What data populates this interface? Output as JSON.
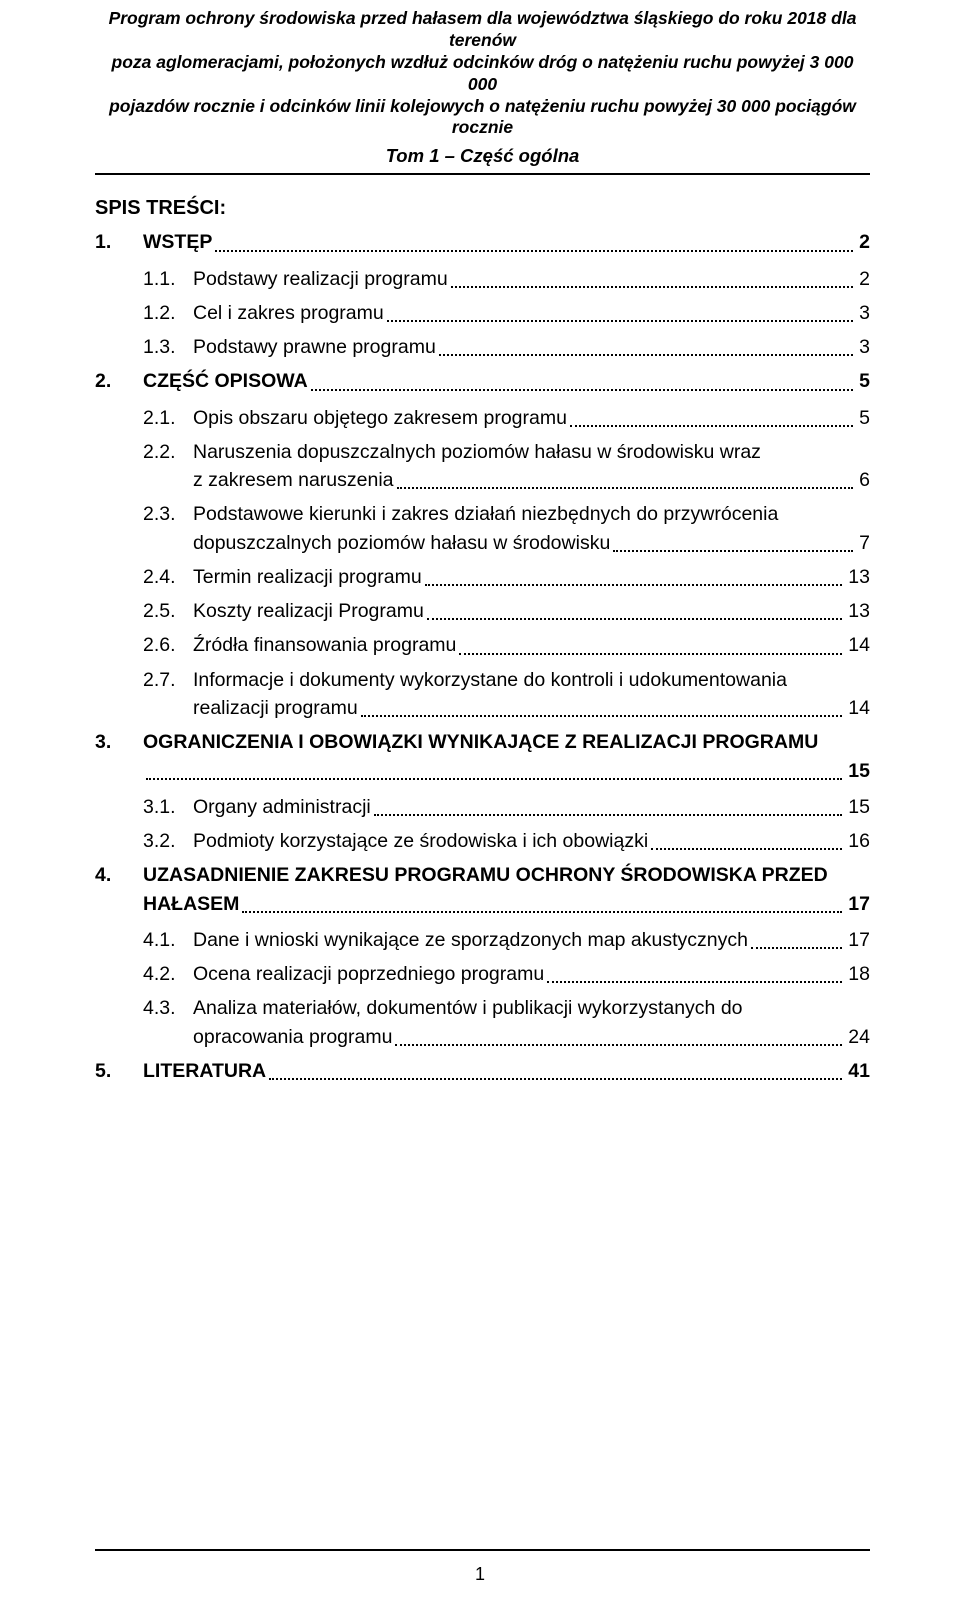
{
  "header": {
    "lines": [
      "Program ochrony środowiska przed hałasem dla województwa śląskiego do roku 2018 dla terenów",
      "poza aglomeracjami, położonych wzdłuż odcinków dróg o natężeniu ruchu powyżej 3 000 000",
      "pojazdów rocznie i odcinków linii kolejowych o natężeniu ruchu powyżej 30 000 pociągów rocznie"
    ],
    "subtitle": "Tom 1 – Część ogólna"
  },
  "toc": {
    "title": "SPIS TREŚCI:",
    "entries": [
      {
        "level": 1,
        "num": "1.",
        "label": "WSTĘP",
        "page": "2"
      },
      {
        "level": 2,
        "num": "1.1.",
        "label": "Podstawy realizacji programu",
        "page": "2"
      },
      {
        "level": 2,
        "num": "1.2.",
        "label": "Cel i zakres programu",
        "page": "3"
      },
      {
        "level": 2,
        "num": "1.3.",
        "label": "Podstawy prawne programu",
        "page": "3"
      },
      {
        "level": 1,
        "num": "2.",
        "label": "CZĘŚĆ OPISOWA",
        "page": "5"
      },
      {
        "level": 2,
        "num": "2.1.",
        "label": "Opis obszaru objętego zakresem programu",
        "page": "5"
      },
      {
        "level": 2,
        "num": "2.2.",
        "label_lines": [
          "Naruszenia dopuszczalnych poziomów hałasu w środowisku wraz",
          "z zakresem naruszenia"
        ],
        "page": "6"
      },
      {
        "level": 2,
        "num": "2.3.",
        "label_lines": [
          "Podstawowe kierunki i zakres działań niezbędnych do przywrócenia",
          "dopuszczalnych poziomów hałasu w środowisku"
        ],
        "page": "7"
      },
      {
        "level": 2,
        "num": "2.4.",
        "label": "Termin realizacji programu",
        "page": "13"
      },
      {
        "level": 2,
        "num": "2.5.",
        "label": "Koszty realizacji Programu",
        "page": "13"
      },
      {
        "level": 2,
        "num": "2.6.",
        "label": "Źródła finansowania programu",
        "page": "14"
      },
      {
        "level": 2,
        "num": "2.7.",
        "label_lines": [
          "Informacje i dokumenty wykorzystane do kontroli i udokumentowania",
          "realizacji programu"
        ],
        "page": "14"
      },
      {
        "level": 1,
        "num": "3.",
        "label_lines": [
          "OGRANICZENIA I OBOWIĄZKI WYNIKAJĄCE Z REALIZACJI PROGRAMU",
          ""
        ],
        "page": "15"
      },
      {
        "level": 2,
        "num": "3.1.",
        "label": "Organy administracji",
        "page": "15"
      },
      {
        "level": 2,
        "num": "3.2.",
        "label": "Podmioty korzystające ze środowiska i ich obowiązki",
        "page": "16"
      },
      {
        "level": 1,
        "num": "4.",
        "label_lines": [
          "UZASADNIENIE ZAKRESU PROGRAMU OCHRONY ŚRODOWISKA PRZED",
          "HAŁASEM"
        ],
        "page": "17"
      },
      {
        "level": 2,
        "num": "4.1.",
        "label": "Dane i wnioski wynikające ze sporządzonych map akustycznych",
        "page": "17"
      },
      {
        "level": 2,
        "num": "4.2.",
        "label": "Ocena realizacji poprzedniego programu",
        "page": "18"
      },
      {
        "level": 2,
        "num": "4.3.",
        "label_lines": [
          "Analiza materiałów, dokumentów i publikacji wykorzystanych do",
          "opracowania programu"
        ],
        "page": "24"
      },
      {
        "level": 1,
        "num": "5.",
        "label": "LITERATURA",
        "page": "41"
      }
    ]
  },
  "footer": {
    "page_number": "1"
  },
  "colors": {
    "text": "#000000",
    "background": "#ffffff",
    "rule": "#000000"
  },
  "fonts": {
    "family": "Arial",
    "header_size_pt": 13,
    "body_size_pt": 14.5
  }
}
